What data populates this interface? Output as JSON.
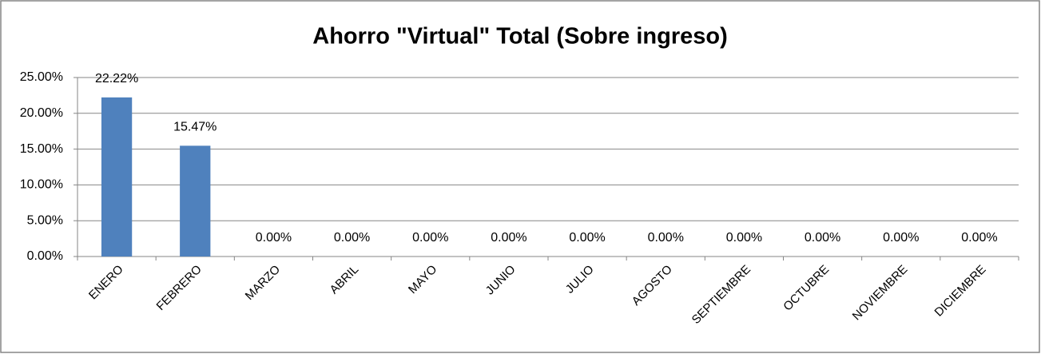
{
  "chart_data": {
    "type": "bar",
    "title": "Ahorro \"Virtual\" Total (Sobre ingreso)",
    "categories": [
      "ENERO",
      "FEBRERO",
      "MARZO",
      "ABRIL",
      "MAYO",
      "JUNIO",
      "JULIO",
      "AGOSTO",
      "SEPTIEMBRE",
      "OCTUBRE",
      "NOVIEMBRE",
      "DICIEMBRE"
    ],
    "values": [
      22.22,
      15.47,
      0,
      0,
      0,
      0,
      0,
      0,
      0,
      0,
      0,
      0
    ],
    "value_labels": [
      "22.22%",
      "15.47%",
      "0.00%",
      "0.00%",
      "0.00%",
      "0.00%",
      "0.00%",
      "0.00%",
      "0.00%",
      "0.00%",
      "0.00%",
      "0.00%"
    ],
    "color": "#4f81bd",
    "ylim": [
      0,
      25
    ],
    "yticks": [
      {
        "value": 0,
        "label": "0.00%"
      },
      {
        "value": 5,
        "label": "5.00%"
      },
      {
        "value": 10,
        "label": "10.00%"
      },
      {
        "value": 15,
        "label": "15.00%"
      },
      {
        "value": 20,
        "label": "20.00%"
      },
      {
        "value": 25,
        "label": "25.00%"
      }
    ],
    "grid": true
  }
}
